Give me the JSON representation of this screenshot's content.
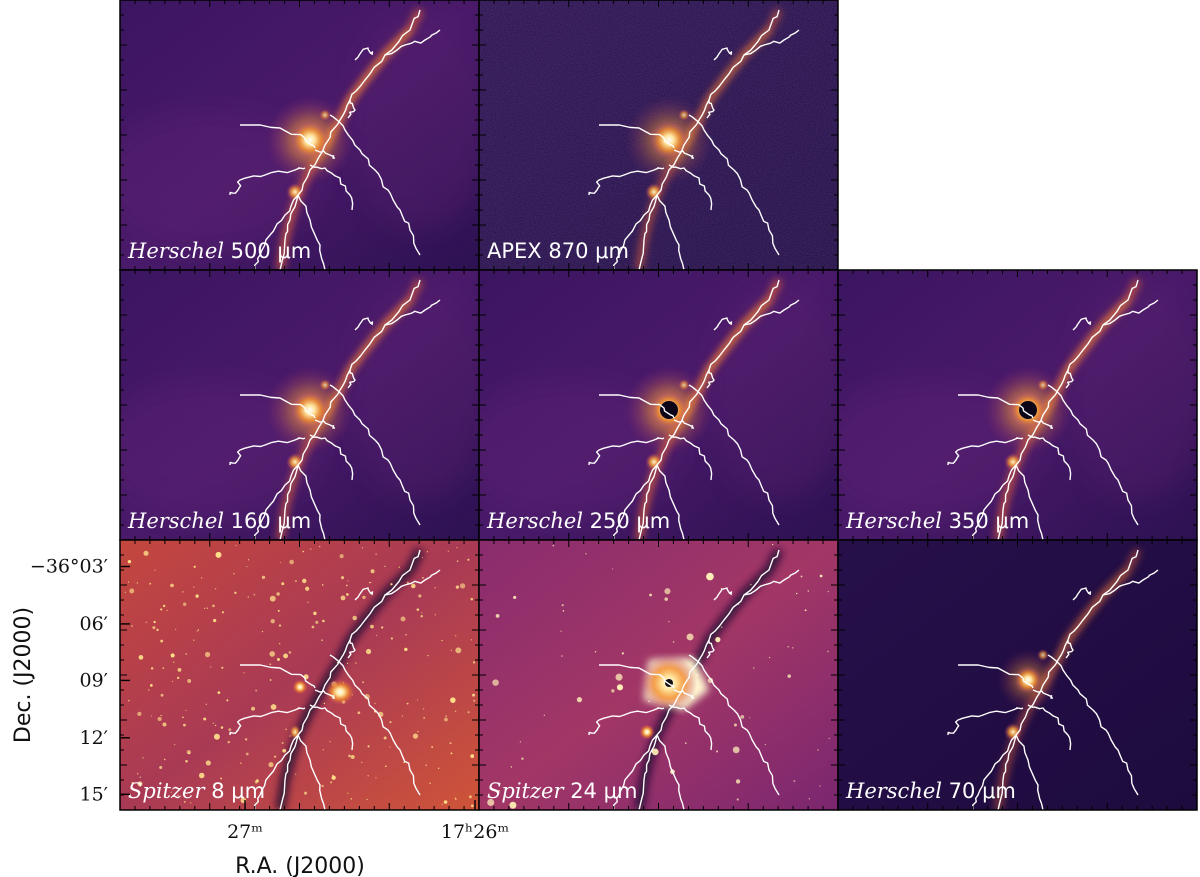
{
  "figure": {
    "panels": [
      {
        "id": "h500",
        "label_italic": "Herschel",
        "label_rest": " 500 μm",
        "style": "smooth",
        "bright": 1.0
      },
      {
        "id": "a870",
        "label_italic": "",
        "label_rest": "APEX 870 μm",
        "style": "noisy",
        "bright": 0.8
      },
      {
        "id": "h160",
        "label_italic": "Herschel",
        "label_rest": " 160 μm",
        "style": "smooth",
        "bright": 0.9
      },
      {
        "id": "h250",
        "label_italic": "Herschel",
        "label_rest": " 250 μm",
        "style": "saturated",
        "bright": 1.0
      },
      {
        "id": "h350",
        "label_italic": "Herschel",
        "label_rest": " 350 μm",
        "style": "saturated",
        "bright": 0.95
      },
      {
        "id": "s8",
        "label_italic": "Spitzer",
        "label_rest": " 8 μm",
        "style": "stars_dense",
        "bright": 1.0
      },
      {
        "id": "s24",
        "label_italic": "Spitzer",
        "label_rest": " 24 μm",
        "style": "stars_bright",
        "bright": 1.0
      },
      {
        "id": "h70",
        "label_italic": "Herschel",
        "label_rest": " 70 μm",
        "style": "faint",
        "bright": 0.7
      }
    ],
    "axes": {
      "y_title": "Dec. (J2000)",
      "x_title": "R.A. (J2000)",
      "y_ticks": [
        "−36°03′",
        "06′",
        "09′",
        "12′",
        "15′"
      ],
      "x_ticks": [
        "27ᵐ",
        "17ʰ26ᵐ"
      ]
    },
    "colormap": "inferno-like",
    "filament_color": "#ffffff"
  }
}
